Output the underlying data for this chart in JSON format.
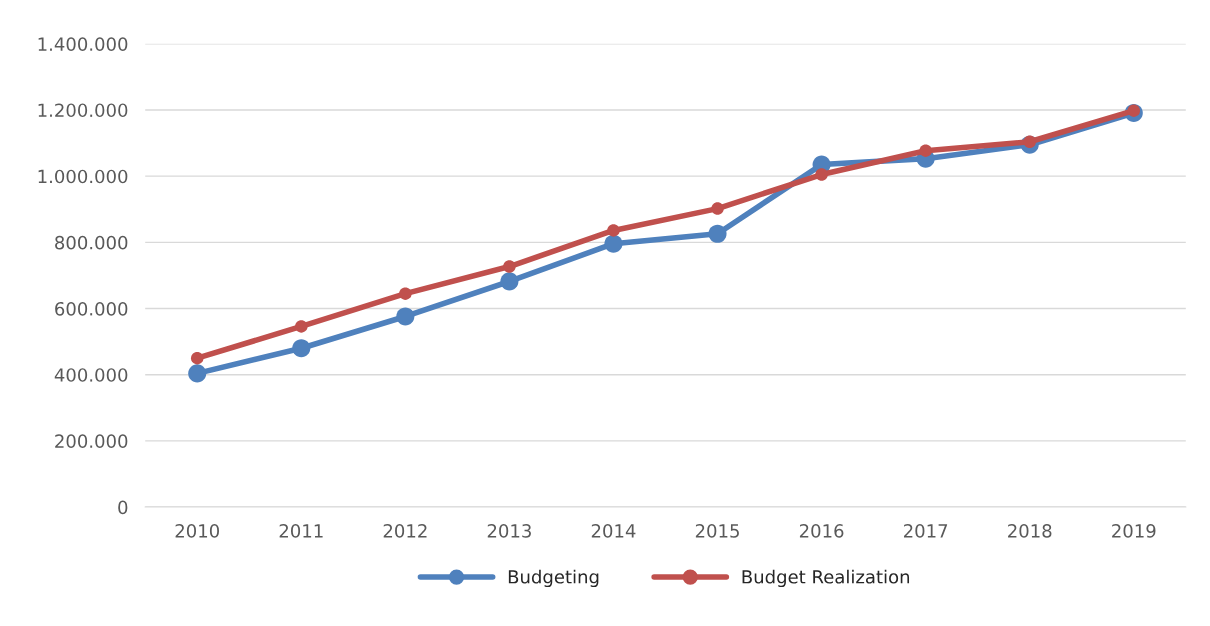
{
  "chart_data": {
    "type": "line",
    "categories": [
      "2010",
      "2011",
      "2012",
      "2013",
      "2014",
      "2015",
      "2016",
      "2017",
      "2018",
      "2019"
    ],
    "series": [
      {
        "name": "Budgeting",
        "color": "#4f81bd",
        "values": [
          404000,
          480000,
          576000,
          682000,
          796000,
          826000,
          1035000,
          1053000,
          1095000,
          1191000
        ]
      },
      {
        "name": "Budget Realization",
        "color": "#c0504d",
        "values": [
          450000,
          546000,
          645000,
          727000,
          836000,
          902000,
          1005000,
          1077000,
          1104000,
          1198000
        ]
      }
    ],
    "ylim": [
      0,
      1400000
    ],
    "yticks": [
      0,
      {
        "value": 200000,
        "label": "200.000"
      },
      {
        "value": 400000,
        "label": "400.000"
      },
      {
        "value": 600000,
        "label": "600.000"
      },
      {
        "value": 800000,
        "label": "800.000"
      },
      {
        "value": 1000000,
        "label": "1.000.000"
      },
      {
        "value": 1200000,
        "label": "1.200.000"
      },
      {
        "value": 1400000,
        "label": "1.400.000"
      }
    ],
    "grid": "y",
    "legend": "bottom",
    "marker": "circle",
    "line_style": "solid"
  }
}
